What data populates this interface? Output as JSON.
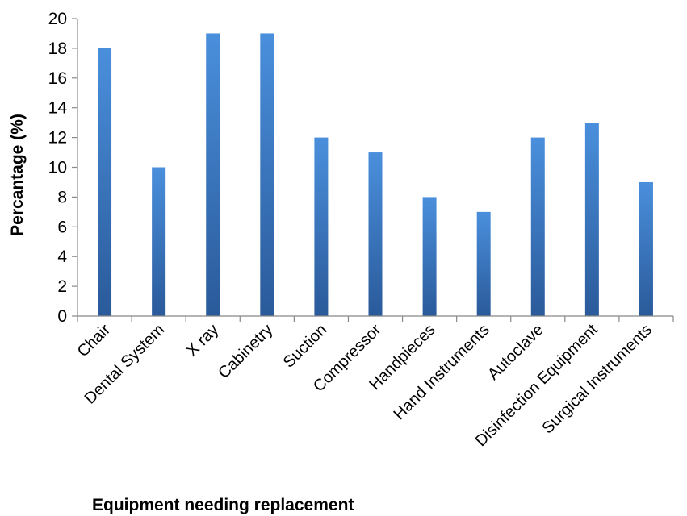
{
  "chart_data": {
    "type": "bar",
    "title": "",
    "xlabel": "Equipment needing replacement",
    "ylabel": "Percantage (%)",
    "ylim": [
      0,
      20
    ],
    "yticks": [
      0,
      2,
      4,
      6,
      8,
      10,
      12,
      14,
      16,
      18,
      20
    ],
    "categories": [
      "Chair",
      "Dental System",
      "X ray",
      "Cabinetry",
      "Suction",
      "Compressor",
      "Handpieces",
      "Hand Instruments",
      "Autoclave",
      "Disinfection Equipment",
      "Surgical Instruments"
    ],
    "values": [
      18,
      10,
      19,
      19,
      12,
      11,
      8,
      7,
      12,
      13,
      9
    ],
    "grid": false,
    "legend": "none",
    "colors": {
      "bar_top": "#4a8fdc",
      "bar_bottom": "#2a5a9a",
      "axis": "#888888"
    }
  }
}
